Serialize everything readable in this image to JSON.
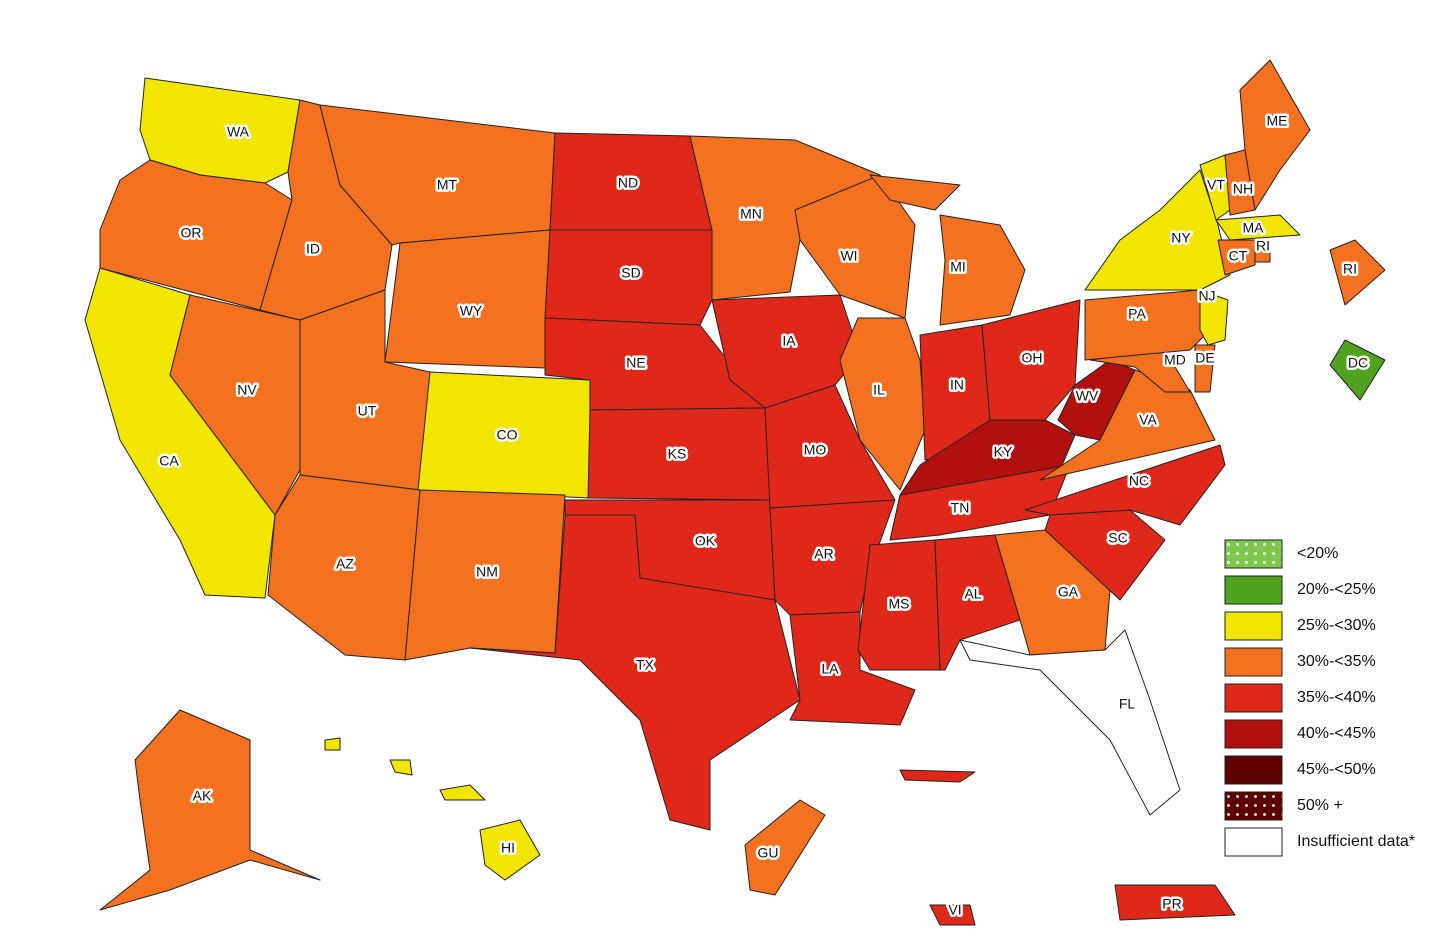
{
  "map": {
    "regions": [
      {
        "label": "WA",
        "color": "#f2e600"
      },
      {
        "label": "OR",
        "color": "#f47120"
      },
      {
        "label": "CA",
        "color": "#f2e600"
      },
      {
        "label": "NV",
        "color": "#f47120"
      },
      {
        "label": "ID",
        "color": "#f47120"
      },
      {
        "label": "MT",
        "color": "#f47120"
      },
      {
        "label": "WY",
        "color": "#f47120"
      },
      {
        "label": "UT",
        "color": "#f47120"
      },
      {
        "label": "CO",
        "color": "#f2e600"
      },
      {
        "label": "AZ",
        "color": "#f47120"
      },
      {
        "label": "NM",
        "color": "#f47120"
      },
      {
        "label": "ND",
        "color": "#e0281a"
      },
      {
        "label": "SD",
        "color": "#e0281a"
      },
      {
        "label": "NE",
        "color": "#e0281a"
      },
      {
        "label": "KS",
        "color": "#e0281a"
      },
      {
        "label": "OK",
        "color": "#e0281a"
      },
      {
        "label": "TX",
        "color": "#e0281a"
      },
      {
        "label": "MN",
        "color": "#f47120"
      },
      {
        "label": "IA",
        "color": "#e0281a"
      },
      {
        "label": "MO",
        "color": "#e0281a"
      },
      {
        "label": "AR",
        "color": "#e0281a"
      },
      {
        "label": "LA",
        "color": "#e0281a"
      },
      {
        "label": "WI",
        "color": "#f47120"
      },
      {
        "label": "IL",
        "color": "#f47120"
      },
      {
        "label": "MI",
        "color": "#f47120"
      },
      {
        "label": "IN",
        "color": "#e0281a"
      },
      {
        "label": "OH",
        "color": "#e0281a"
      },
      {
        "label": "KY",
        "color": "#b20f0f"
      },
      {
        "label": "WV",
        "color": "#b20f0f"
      },
      {
        "label": "TN",
        "color": "#e0281a"
      },
      {
        "label": "MS",
        "color": "#e0281a"
      },
      {
        "label": "AL",
        "color": "#e0281a"
      },
      {
        "label": "GA",
        "color": "#f47120"
      },
      {
        "label": "FL",
        "color": "#ffffff"
      },
      {
        "label": "SC",
        "color": "#e0281a"
      },
      {
        "label": "NC",
        "color": "#e0281a"
      },
      {
        "label": "VA",
        "color": "#f47120"
      },
      {
        "label": "MD",
        "color": "#f47120"
      },
      {
        "label": "DE",
        "color": "#f47120"
      },
      {
        "label": "PA",
        "color": "#f47120"
      },
      {
        "label": "NJ",
        "color": "#f2e600"
      },
      {
        "label": "NY",
        "color": "#f2e600"
      },
      {
        "label": "VT",
        "color": "#f2e600"
      },
      {
        "label": "NH",
        "color": "#f47120"
      },
      {
        "label": "ME",
        "color": "#f47120"
      },
      {
        "label": "MA",
        "color": "#f2e600"
      },
      {
        "label": "CT",
        "color": "#f47120"
      },
      {
        "label": "RI",
        "color": "#f47120"
      },
      {
        "label": "RI",
        "color": "#f47120"
      },
      {
        "label": "DC",
        "color": "#4fa31f"
      },
      {
        "label": "AK",
        "color": "#f47120"
      },
      {
        "label": "HI",
        "color": "#f2e600"
      },
      {
        "label": "GU",
        "color": "#f47120"
      },
      {
        "label": "VI",
        "color": "#e0281a"
      },
      {
        "label": "PR",
        "color": "#e0281a"
      }
    ],
    "legend": [
      {
        "label": "<20%",
        "color": "#7ec850",
        "pattern": "dots"
      },
      {
        "label": "20%-<25%",
        "color": "#4fa31f"
      },
      {
        "label": "25%-<30%",
        "color": "#f2e600"
      },
      {
        "label": "30%-<35%",
        "color": "#f47120"
      },
      {
        "label": "35%-<40%",
        "color": "#e0281a"
      },
      {
        "label": "40%-<45%",
        "color": "#b20f0f"
      },
      {
        "label": "45%-<50%",
        "color": "#5c0000"
      },
      {
        "label": "50% +",
        "color": "#5c0000",
        "pattern": "dots"
      },
      {
        "label": "Insufficient data*",
        "color": "#ffffff"
      }
    ]
  }
}
